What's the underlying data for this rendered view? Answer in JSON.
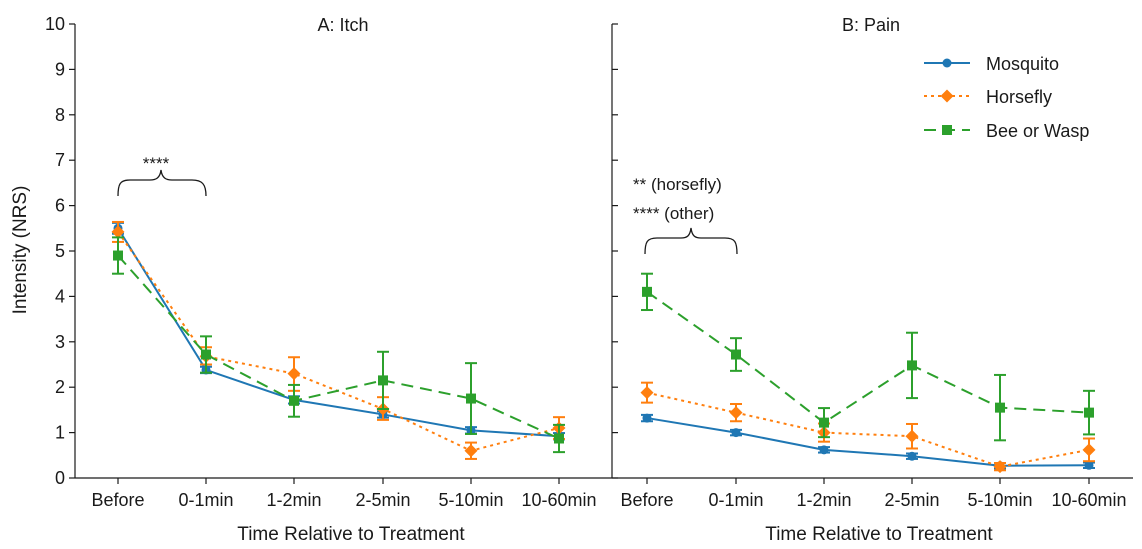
{
  "colors": {
    "Mosquito": "#1f77b4",
    "Horsefly": "#ff7f0e",
    "Bee or Wasp": "#2ca02c",
    "axis": "#1a1a1a"
  },
  "legend": {
    "placement": "top-right of panel B",
    "items": [
      {
        "label": "Mosquito",
        "marker": "circle",
        "line": "solid"
      },
      {
        "label": "Horsefly",
        "marker": "diamond",
        "line": "dotted"
      },
      {
        "label": "Bee or Wasp",
        "marker": "square",
        "line": "dashed"
      }
    ]
  },
  "chart_data": [
    {
      "type": "line",
      "panel": "A",
      "title": "A: Itch",
      "xlabel": "Time Relative to Treatment",
      "ylabel": "Intensity (NRS)",
      "categories": [
        "Before",
        "0-1min",
        "1-2min",
        "2-5min",
        "5-10min",
        "10-60min"
      ],
      "ylim": [
        0,
        10
      ],
      "yticks": [
        "0",
        "1",
        "2",
        "3",
        "4",
        "5",
        "6",
        "7",
        "8",
        "9",
        "10"
      ],
      "grid": false,
      "series": [
        {
          "name": "Mosquito",
          "values": [
            5.5,
            2.38,
            1.72,
            1.4,
            1.05,
            0.92
          ],
          "err_low": [
            5.38,
            2.31,
            1.64,
            1.33,
            0.98,
            0.85
          ],
          "err_high": [
            5.62,
            2.45,
            1.8,
            1.47,
            1.12,
            0.99
          ]
        },
        {
          "name": "Horsefly",
          "values": [
            5.42,
            2.68,
            2.3,
            1.52,
            0.6,
            1.1
          ],
          "err_low": [
            5.2,
            2.5,
            1.92,
            1.28,
            0.42,
            0.86
          ],
          "err_high": [
            5.64,
            2.88,
            2.66,
            1.78,
            0.78,
            1.34
          ]
        },
        {
          "name": "Bee or Wasp",
          "values": [
            4.9,
            2.72,
            1.7,
            2.15,
            1.75,
            0.87
          ],
          "err_low": [
            4.5,
            2.32,
            1.35,
            1.52,
            0.97,
            0.57
          ],
          "err_high": [
            5.3,
            3.12,
            2.05,
            2.78,
            2.53,
            1.17
          ]
        }
      ],
      "annotations": [
        {
          "text": "****",
          "from": "Before",
          "to": "0-1min",
          "y": 7.0
        }
      ]
    },
    {
      "type": "line",
      "panel": "B",
      "title": "B: Pain",
      "xlabel": "Time Relative to Treatment",
      "ylabel": "",
      "categories": [
        "Before",
        "0-1min",
        "1-2min",
        "2-5min",
        "5-10min",
        "10-60min"
      ],
      "ylim": [
        0,
        10
      ],
      "grid": false,
      "series": [
        {
          "name": "Mosquito",
          "values": [
            1.32,
            1.0,
            0.62,
            0.48,
            0.27,
            0.28
          ],
          "err_low": [
            1.25,
            0.94,
            0.56,
            0.42,
            0.21,
            0.22
          ],
          "err_high": [
            1.39,
            1.06,
            0.68,
            0.54,
            0.33,
            0.34
          ]
        },
        {
          "name": "Horsefly",
          "values": [
            1.88,
            1.44,
            1.0,
            0.92,
            0.25,
            0.62
          ],
          "err_low": [
            1.66,
            1.25,
            0.8,
            0.65,
            0.17,
            0.37
          ],
          "err_high": [
            2.1,
            1.63,
            1.2,
            1.19,
            0.33,
            0.87
          ]
        },
        {
          "name": "Bee or Wasp",
          "values": [
            4.1,
            2.72,
            1.22,
            2.48,
            1.55,
            1.44
          ],
          "err_low": [
            3.7,
            2.36,
            0.9,
            1.76,
            0.83,
            0.96
          ],
          "err_high": [
            4.5,
            3.08,
            1.54,
            3.2,
            2.27,
            1.92
          ]
        }
      ],
      "annotations": [
        {
          "text": "** (horsefly)",
          "line": 1
        },
        {
          "text": "**** (other)",
          "line": 2,
          "from": "Before",
          "to": "0-1min",
          "y": 5.3
        }
      ]
    }
  ]
}
